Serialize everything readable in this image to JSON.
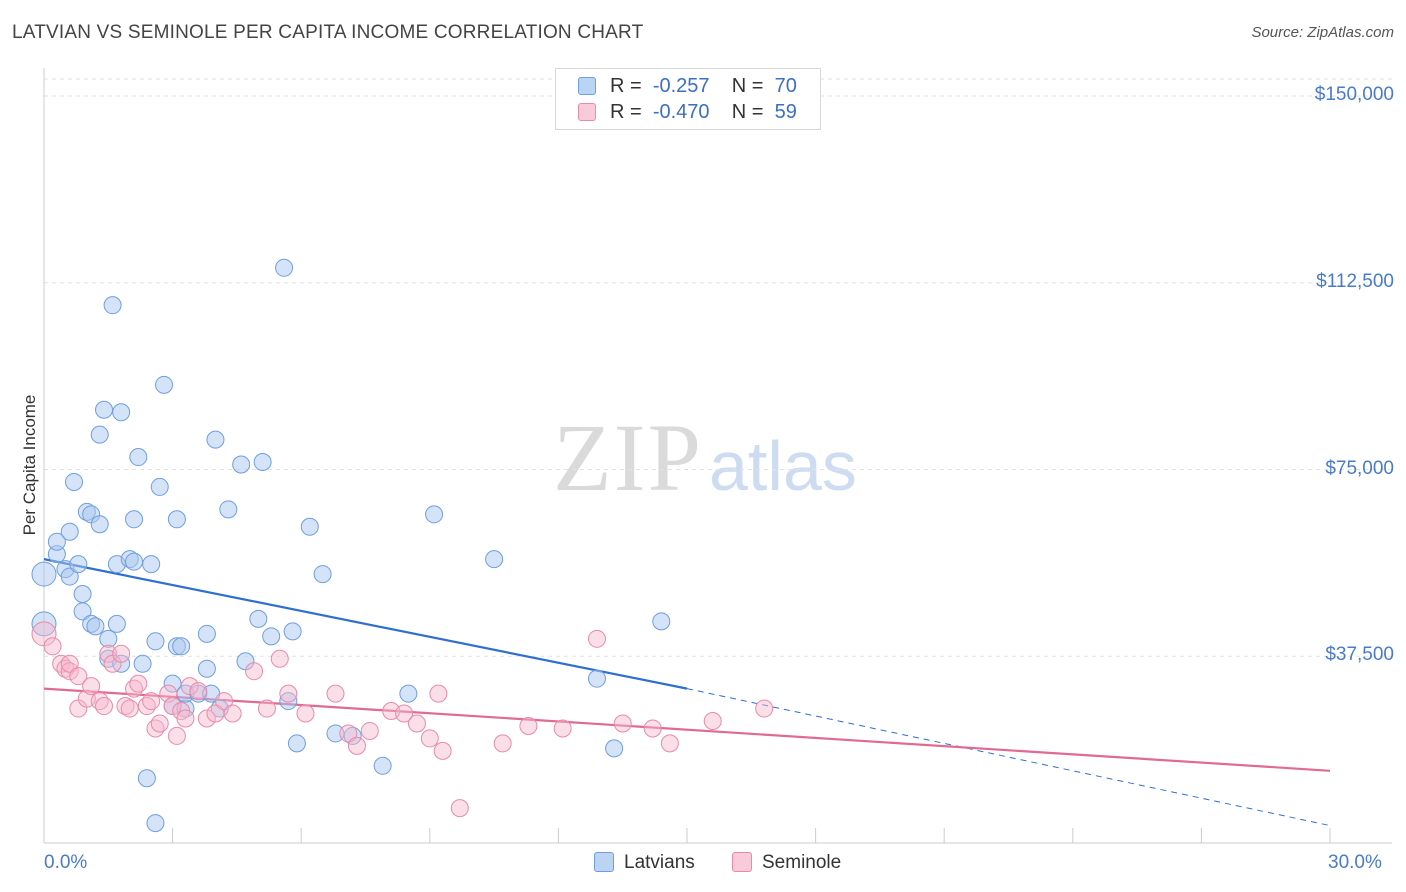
{
  "header": {
    "title": "LATVIAN VS SEMINOLE PER CAPITA INCOME CORRELATION CHART",
    "source": "Source: ZipAtlas.com"
  },
  "watermark": {
    "zip": "ZIP",
    "atlas": "atlas"
  },
  "legend": {
    "rows": [
      {
        "r_label": "R =",
        "r_value": "-0.257",
        "n_label": "N =",
        "n_value": "70"
      },
      {
        "r_label": "R =",
        "r_value": "-0.470",
        "n_label": "N =",
        "n_value": "59"
      }
    ]
  },
  "colors": {
    "latvians_fill": "#a9c8f0",
    "latvians_stroke": "#6f9fde",
    "latvians_line": "#2f6fcf",
    "seminole_fill": "#f6b8cc",
    "seminole_stroke": "#e98aaa",
    "seminole_line": "#e06a92"
  },
  "chart_data": {
    "type": "scatter",
    "title": "LATVIAN VS SEMINOLE PER CAPITA INCOME CORRELATION CHART",
    "xlabel": "",
    "ylabel": "Per Capita Income",
    "xlim": [
      0,
      30
    ],
    "ylim": [
      0,
      150000
    ],
    "y_ticks": [
      37500,
      75000,
      112500,
      150000
    ],
    "y_tick_labels": [
      "$37,500",
      "$75,000",
      "$112,500",
      "$150,000"
    ],
    "x_tick_labels": [
      "0.0%",
      "30.0%"
    ],
    "grid": true,
    "legend_position": "top-center",
    "series": [
      {
        "name": "Latvians",
        "R": -0.257,
        "N": 70,
        "trend": {
          "x": [
            0,
            15
          ],
          "y": [
            57000,
            31000
          ],
          "dashed_to": [
            30,
            3500
          ]
        },
        "points": [
          [
            0.0,
            54000
          ],
          [
            0.0,
            44000
          ],
          [
            0.3,
            58000
          ],
          [
            0.3,
            60500
          ],
          [
            0.5,
            55000
          ],
          [
            0.6,
            62500
          ],
          [
            0.6,
            53500
          ],
          [
            0.7,
            72500
          ],
          [
            0.8,
            56000
          ],
          [
            0.9,
            50000
          ],
          [
            0.9,
            46500
          ],
          [
            1.0,
            66500
          ],
          [
            1.1,
            66000
          ],
          [
            1.1,
            44000
          ],
          [
            1.2,
            43500
          ],
          [
            1.3,
            82000
          ],
          [
            1.3,
            64000
          ],
          [
            1.4,
            87000
          ],
          [
            1.5,
            41000
          ],
          [
            1.5,
            37000
          ],
          [
            1.6,
            108000
          ],
          [
            1.7,
            56000
          ],
          [
            1.7,
            44000
          ],
          [
            1.8,
            86500
          ],
          [
            1.8,
            36000
          ],
          [
            2.0,
            57000
          ],
          [
            2.1,
            56500
          ],
          [
            2.1,
            65000
          ],
          [
            2.2,
            77500
          ],
          [
            2.3,
            36000
          ],
          [
            2.4,
            13000
          ],
          [
            2.5,
            56000
          ],
          [
            2.6,
            40500
          ],
          [
            2.6,
            4000
          ],
          [
            2.7,
            71500
          ],
          [
            2.8,
            92000
          ],
          [
            3.0,
            32000
          ],
          [
            3.0,
            27500
          ],
          [
            3.1,
            65000
          ],
          [
            3.1,
            39500
          ],
          [
            3.2,
            39500
          ],
          [
            3.3,
            27000
          ],
          [
            3.3,
            30000
          ],
          [
            3.6,
            30000
          ],
          [
            3.8,
            35000
          ],
          [
            3.8,
            42000
          ],
          [
            3.9,
            30000
          ],
          [
            4.0,
            81000
          ],
          [
            4.1,
            27000
          ],
          [
            4.3,
            67000
          ],
          [
            4.6,
            76000
          ],
          [
            4.7,
            36500
          ],
          [
            5.0,
            45000
          ],
          [
            5.1,
            76500
          ],
          [
            5.3,
            41500
          ],
          [
            5.6,
            115500
          ],
          [
            5.7,
            28500
          ],
          [
            5.8,
            42500
          ],
          [
            5.9,
            20000
          ],
          [
            6.2,
            63500
          ],
          [
            6.5,
            54000
          ],
          [
            6.8,
            22000
          ],
          [
            7.2,
            21500
          ],
          [
            7.9,
            15500
          ],
          [
            8.5,
            30000
          ],
          [
            9.1,
            66000
          ],
          [
            10.5,
            57000
          ],
          [
            12.9,
            33000
          ],
          [
            13.3,
            19000
          ],
          [
            14.4,
            44500
          ]
        ]
      },
      {
        "name": "Seminole",
        "R": -0.47,
        "N": 59,
        "trend": {
          "x": [
            0,
            30
          ],
          "y": [
            31000,
            14500
          ]
        },
        "points": [
          [
            0.0,
            42000
          ],
          [
            0.2,
            39500
          ],
          [
            0.4,
            36000
          ],
          [
            0.5,
            35000
          ],
          [
            0.6,
            34500
          ],
          [
            0.6,
            36000
          ],
          [
            0.8,
            27000
          ],
          [
            0.8,
            33500
          ],
          [
            1.0,
            29000
          ],
          [
            1.1,
            31500
          ],
          [
            1.3,
            28500
          ],
          [
            1.4,
            27500
          ],
          [
            1.5,
            38000
          ],
          [
            1.6,
            36000
          ],
          [
            1.8,
            38000
          ],
          [
            1.9,
            27500
          ],
          [
            2.0,
            27000
          ],
          [
            2.1,
            31000
          ],
          [
            2.2,
            32000
          ],
          [
            2.4,
            27500
          ],
          [
            2.5,
            28500
          ],
          [
            2.6,
            23000
          ],
          [
            2.7,
            24000
          ],
          [
            2.9,
            30000
          ],
          [
            3.0,
            27500
          ],
          [
            3.1,
            21500
          ],
          [
            3.2,
            26500
          ],
          [
            3.3,
            25000
          ],
          [
            3.4,
            31500
          ],
          [
            3.6,
            30500
          ],
          [
            3.8,
            25000
          ],
          [
            4.0,
            26000
          ],
          [
            4.2,
            28500
          ],
          [
            4.4,
            26000
          ],
          [
            4.9,
            34500
          ],
          [
            5.2,
            27000
          ],
          [
            5.5,
            37000
          ],
          [
            5.7,
            30000
          ],
          [
            6.1,
            26000
          ],
          [
            6.8,
            30000
          ],
          [
            7.1,
            22000
          ],
          [
            7.3,
            19500
          ],
          [
            7.6,
            22500
          ],
          [
            8.1,
            26500
          ],
          [
            8.4,
            26000
          ],
          [
            8.7,
            24000
          ],
          [
            9.0,
            21000
          ],
          [
            9.2,
            30000
          ],
          [
            9.3,
            18500
          ],
          [
            9.7,
            7000
          ],
          [
            10.7,
            20000
          ],
          [
            11.3,
            23500
          ],
          [
            12.1,
            23000
          ],
          [
            12.9,
            41000
          ],
          [
            13.5,
            24000
          ],
          [
            14.2,
            23000
          ],
          [
            14.6,
            20000
          ],
          [
            15.6,
            24500
          ],
          [
            16.8,
            27000
          ]
        ]
      }
    ]
  }
}
